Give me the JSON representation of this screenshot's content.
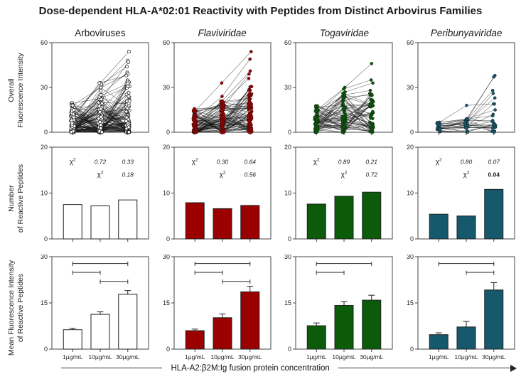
{
  "title": "Dose-dependent HLA-A*02:01 Reactivity with Peptides from Distinct Arbovirus Families",
  "footer": {
    "label": "HLA-A2:β2M:Ig fusion protein concentration"
  },
  "x_categories": [
    "1μg/mL",
    "10μg/mL",
    "30μg/mL"
  ],
  "row_labels": [
    {
      "line1": "Overall",
      "line2": "Fluorescence Intensity"
    },
    {
      "line1": "Number",
      "line2": "of Reactive Peptides"
    },
    {
      "line1": "Mean Fluorescence Intensity",
      "line2": "of Reactive Peptides"
    }
  ],
  "columns": [
    {
      "label": "Arboviruses",
      "italic": false,
      "color": "#ffffff"
    },
    {
      "label": "Flaviviridae",
      "italic": true,
      "color": "#9a0000"
    },
    {
      "label": "Togaviridae",
      "italic": true,
      "color": "#0b5b0b"
    },
    {
      "label": "Peribunyaviridae",
      "italic": true,
      "color": "#16586c"
    }
  ],
  "chart_data": [
    {
      "panel": "arboviruses-overall-fluorescence",
      "type": "line",
      "ylim": [
        0,
        60
      ],
      "yticks": [
        0,
        30,
        60
      ],
      "x": [
        "1μg/mL",
        "10μg/mL",
        "30μg/mL"
      ],
      "n_series": 115,
      "seed": 11,
      "skew": 2.1,
      "y_ranges": [
        [
          0,
          20
        ],
        [
          0,
          30
        ],
        [
          0,
          36
        ]
      ],
      "marker": "open",
      "outlier_series": [
        [
          8,
          33,
          54
        ],
        [
          15,
          31,
          48
        ],
        [
          5,
          22,
          47
        ],
        [
          12,
          32,
          44
        ],
        [
          6,
          25,
          40
        ],
        [
          18,
          30,
          39
        ],
        [
          10,
          33,
          38
        ]
      ]
    },
    {
      "panel": "flaviviridae-overall-fluorescence",
      "type": "line",
      "ylim": [
        0,
        60
      ],
      "yticks": [
        0,
        30,
        60
      ],
      "x": [
        "1μg/mL",
        "10μg/mL",
        "30μg/mL"
      ],
      "n_series": 85,
      "seed": 23,
      "skew": 2.0,
      "y_ranges": [
        [
          0,
          16
        ],
        [
          0,
          21
        ],
        [
          0,
          32
        ]
      ],
      "marker": "filled",
      "outlier_series": [
        [
          14,
          33,
          54
        ],
        [
          8,
          24,
          49
        ],
        [
          4,
          21,
          41
        ],
        [
          6,
          15,
          39
        ],
        [
          3,
          20,
          36
        ]
      ]
    },
    {
      "panel": "togaviridae-overall-fluorescence",
      "type": "line",
      "ylim": [
        0,
        60
      ],
      "yticks": [
        0,
        30,
        60
      ],
      "x": [
        "1μg/mL",
        "10μg/mL",
        "30μg/mL"
      ],
      "n_series": 60,
      "seed": 5,
      "skew": 1.55,
      "y_ranges": [
        [
          0,
          19
        ],
        [
          0,
          28
        ],
        [
          0,
          26
        ]
      ],
      "marker": "filled",
      "outlier_series": [
        [
          15,
          30,
          46
        ],
        [
          12,
          29,
          35
        ],
        [
          9,
          27,
          33
        ],
        [
          14,
          25,
          28
        ]
      ]
    },
    {
      "panel": "peribunyaviridae-overall-fluorescence",
      "type": "line",
      "ylim": [
        0,
        60
      ],
      "yticks": [
        0,
        30,
        60
      ],
      "x": [
        "1μg/mL",
        "10μg/mL",
        "30μg/mL"
      ],
      "n_series": 16,
      "seed": 9,
      "skew": 1.8,
      "y_ranges": [
        [
          0,
          7
        ],
        [
          0,
          10
        ],
        [
          0,
          10
        ]
      ],
      "marker": "filled",
      "outlier_series": [
        [
          6,
          18,
          19
        ],
        [
          5,
          8,
          38
        ],
        [
          4,
          6,
          37
        ],
        [
          3,
          7,
          28
        ],
        [
          2,
          5,
          26
        ],
        [
          3,
          6,
          23
        ],
        [
          2,
          4,
          19
        ],
        [
          5,
          9,
          15
        ],
        [
          1,
          3,
          12
        ],
        [
          2,
          9,
          11
        ]
      ]
    },
    {
      "panel": "arboviruses-number-reactive",
      "type": "bar",
      "ylim": [
        0,
        20
      ],
      "yticks": [
        0,
        10,
        20
      ],
      "values": [
        7.5,
        7.2,
        8.5
      ],
      "chi_rows": [
        [
          {
            "chi": true,
            "label": "χ²"
          },
          {
            "v": "0.72"
          },
          {
            "v": "0.33"
          }
        ],
        [
          null,
          {
            "chi": true,
            "label": "χ²"
          },
          {
            "v": "0.18"
          }
        ]
      ]
    },
    {
      "panel": "flaviviridae-number-reactive",
      "type": "bar",
      "ylim": [
        0,
        20
      ],
      "yticks": [
        0,
        10,
        20
      ],
      "values": [
        7.9,
        6.6,
        7.3
      ],
      "chi_rows": [
        [
          {
            "chi": true,
            "label": "χ²"
          },
          {
            "v": "0.30"
          },
          {
            "v": "0.64"
          }
        ],
        [
          null,
          {
            "chi": true,
            "label": "χ²"
          },
          {
            "v": "0.56"
          }
        ]
      ]
    },
    {
      "panel": "togaviridae-number-reactive",
      "type": "bar",
      "ylim": [
        0,
        20
      ],
      "yticks": [
        0,
        10,
        20
      ],
      "values": [
        7.6,
        9.3,
        10.2
      ],
      "chi_rows": [
        [
          {
            "chi": true,
            "label": "χ²"
          },
          {
            "v": "0.89"
          },
          {
            "v": "0.21"
          }
        ],
        [
          null,
          {
            "chi": true,
            "label": "χ²"
          },
          {
            "v": "0.72"
          }
        ]
      ]
    },
    {
      "panel": "peribunyaviridae-number-reactive",
      "type": "bar",
      "ylim": [
        0,
        20
      ],
      "yticks": [
        0,
        10,
        20
      ],
      "values": [
        5.4,
        5.0,
        10.8
      ],
      "chi_rows": [
        [
          {
            "chi": true,
            "label": "χ²"
          },
          {
            "v": "0.80"
          },
          {
            "v": "0.07"
          }
        ],
        [
          null,
          {
            "chi": true,
            "label": "χ²"
          },
          {
            "v": "0.04",
            "bold": true
          }
        ]
      ]
    },
    {
      "panel": "arboviruses-mean-fluorescence",
      "type": "bar-error",
      "ylim": [
        0,
        30
      ],
      "yticks": [
        0,
        15,
        30
      ],
      "values": [
        6.3,
        11.3,
        17.8
      ],
      "errors": [
        0.5,
        0.8,
        1.2
      ],
      "xlabels": true,
      "brackets": [
        {
          "from": 0,
          "to": 2,
          "y": 27.8
        },
        {
          "from": 0,
          "to": 1,
          "y": 24.9
        },
        {
          "from": 1,
          "to": 2,
          "y": 22.0
        }
      ]
    },
    {
      "panel": "flaviviridae-mean-fluorescence",
      "type": "bar-error",
      "ylim": [
        0,
        30
      ],
      "yticks": [
        0,
        15,
        30
      ],
      "values": [
        6.0,
        10.2,
        18.6
      ],
      "errors": [
        0.5,
        1.2,
        1.8
      ],
      "xlabels": true,
      "brackets": [
        {
          "from": 0,
          "to": 2,
          "y": 27.8
        },
        {
          "from": 0,
          "to": 1,
          "y": 24.9
        },
        {
          "from": 1,
          "to": 2,
          "y": 22.0
        }
      ]
    },
    {
      "panel": "togaviridae-mean-fluorescence",
      "type": "bar-error",
      "ylim": [
        0,
        30
      ],
      "yticks": [
        0,
        15,
        30
      ],
      "values": [
        7.6,
        14.2,
        15.9
      ],
      "errors": [
        0.9,
        1.2,
        1.6
      ],
      "xlabels": true,
      "brackets": [
        {
          "from": 0,
          "to": 2,
          "y": 27.8
        },
        {
          "from": 0,
          "to": 1,
          "y": 24.9
        }
      ]
    },
    {
      "panel": "peribunyaviridae-mean-fluorescence",
      "type": "bar-error",
      "ylim": [
        0,
        30
      ],
      "yticks": [
        0,
        15,
        30
      ],
      "values": [
        4.7,
        7.2,
        19.2
      ],
      "errors": [
        0.6,
        1.8,
        2.4
      ],
      "xlabels": true,
      "brackets": [
        {
          "from": 0,
          "to": 2,
          "y": 27.8
        },
        {
          "from": 1,
          "to": 2,
          "y": 24.9
        }
      ]
    }
  ]
}
